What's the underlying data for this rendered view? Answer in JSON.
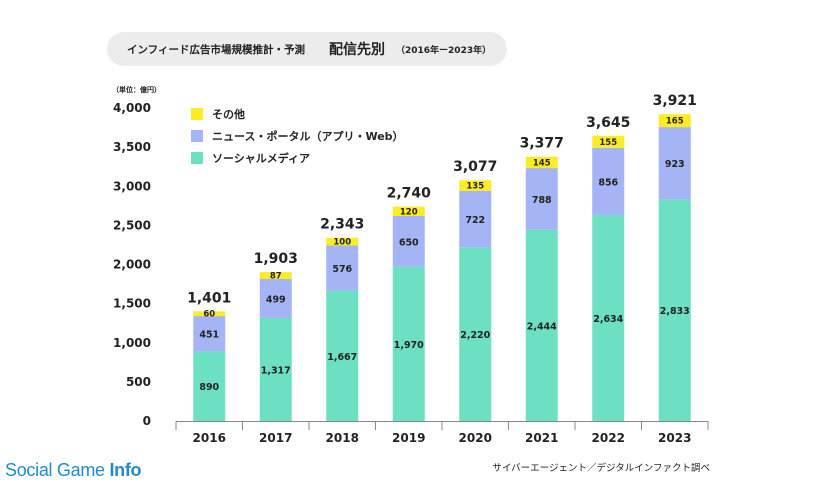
{
  "header": {
    "title_main": "インフィード広告市場規模推計・予測",
    "title_sub": "配信先別",
    "title_range": "（2016年ー2023年）"
  },
  "footer": {
    "brand_a": "Social Game ",
    "brand_b": "Info",
    "source": "サイバーエージェント／デジタルインファクト調べ"
  },
  "chart_data": {
    "type": "bar",
    "stacked": true,
    "unit_label": "（単位：億円）",
    "categories": [
      "2016",
      "2017",
      "2018",
      "2019",
      "2020",
      "2021",
      "2022",
      "2023"
    ],
    "series": [
      {
        "name": "ソーシャルメディア",
        "color": "#6ddfc3",
        "values": [
          890,
          1317,
          1667,
          1970,
          2220,
          2444,
          2634,
          2833
        ],
        "labels": [
          "890",
          "1,317",
          "1,667",
          "1,970",
          "2,220",
          "2,444",
          "2,634",
          "2,833"
        ]
      },
      {
        "name": "ニュース・ポータル（アプリ・Web）",
        "color": "#a4b4f4",
        "values": [
          451,
          499,
          576,
          650,
          722,
          788,
          856,
          923
        ],
        "labels": [
          "451",
          "499",
          "576",
          "650",
          "722",
          "788",
          "856",
          "923"
        ]
      },
      {
        "name": "その他",
        "color": "#fbec25",
        "values": [
          60,
          87,
          100,
          120,
          135,
          145,
          155,
          165
        ],
        "labels": [
          "60",
          "87",
          "100",
          "120",
          "135",
          "145",
          "155",
          "165"
        ]
      }
    ],
    "totals": [
      "1,401",
      "1,903",
      "2,343",
      "2,740",
      "3,077",
      "3,377",
      "3,645",
      "3,921"
    ],
    "ylim": [
      0,
      4000
    ],
    "yticks": [
      0,
      500,
      1000,
      1500,
      2000,
      2500,
      3000,
      3500,
      4000
    ],
    "ytick_labels": [
      "0",
      "500",
      "1,000",
      "1,500",
      "2,000",
      "2,500",
      "3,000",
      "3,500",
      "4,000"
    ],
    "legend_order": [
      "その他",
      "ニュース・ポータル（アプリ・Web）",
      "ソーシャルメディア"
    ],
    "legend_position": "top-left",
    "grid": false
  }
}
